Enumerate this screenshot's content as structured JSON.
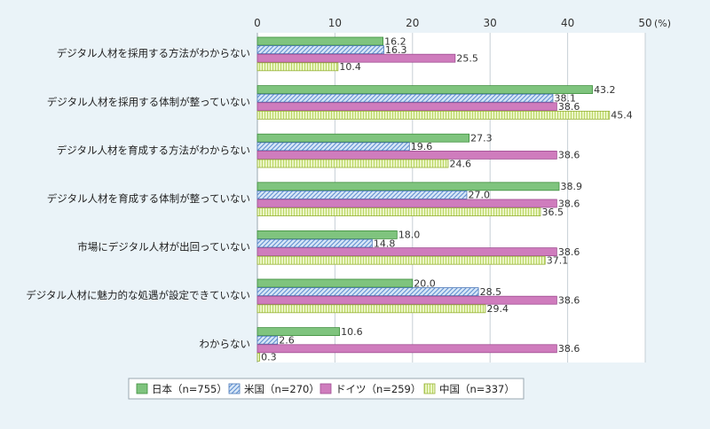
{
  "chart_data": {
    "type": "bar",
    "orientation": "horizontal",
    "title": "",
    "xlabel": "",
    "ylabel": "",
    "x_unit": "(%)",
    "xlim": [
      0,
      50
    ],
    "x_ticks": [
      "0",
      "10",
      "20",
      "30",
      "40",
      "50"
    ],
    "grid": true,
    "legend_position": "bottom",
    "categories": [
      "デジタル人材を採用する方法がわからない",
      "デジタル人材を採用する体制が整っていない",
      "デジタル人材を育成する方法がわからない",
      "デジタル人材を育成する体制が整っていない",
      "市場にデジタル人材が出回っていない",
      "デジタル人材に魅力的な処遇が設定できていない",
      "わからない"
    ],
    "series": [
      {
        "name": "日本（n=755）",
        "color": "#7fc47e",
        "pattern": "solid",
        "values": [
          16.2,
          43.2,
          27.3,
          38.9,
          18.0,
          20.0,
          10.6
        ],
        "labels": [
          "16.2",
          "43.2",
          "27.3",
          "38.9",
          "18.0",
          "20.0",
          "10.6"
        ]
      },
      {
        "name": "米国（n=270）",
        "color": "#8ab4e4",
        "pattern": "diagonal",
        "values": [
          16.3,
          38.1,
          19.6,
          27.0,
          14.8,
          28.5,
          2.6
        ],
        "labels": [
          "16.3",
          "38.1",
          "19.6",
          "27.0",
          "14.8",
          "28.5",
          "2.6"
        ]
      },
      {
        "name": "ドイツ（n=259）",
        "color": "#cf7cbd",
        "pattern": "solid",
        "values": [
          25.5,
          38.6,
          38.6,
          38.6,
          38.6,
          38.6,
          38.6
        ],
        "labels": [
          "25.5",
          "38.6",
          "38.6",
          "38.6",
          "38.6",
          "38.6",
          "38.6"
        ]
      },
      {
        "name": "中国（n=337）",
        "color": "#d6e98a",
        "pattern": "grid",
        "values": [
          10.4,
          45.4,
          24.6,
          36.5,
          37.1,
          29.4,
          0.3
        ],
        "labels": [
          "10.4",
          "45.4",
          "24.6",
          "36.5",
          "37.1",
          "29.4",
          "0.3"
        ]
      }
    ]
  }
}
